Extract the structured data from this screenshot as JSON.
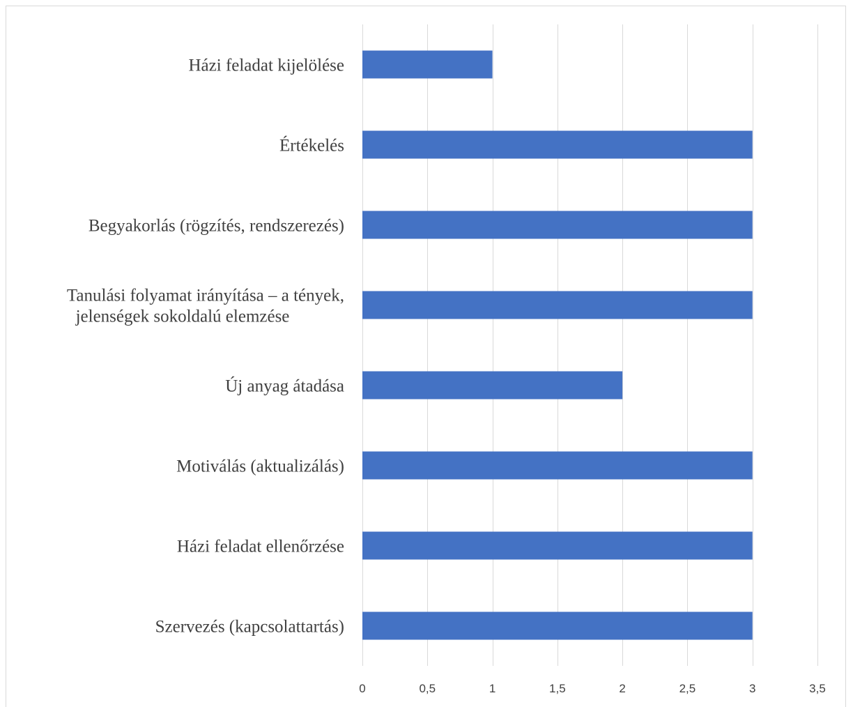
{
  "chart_data": {
    "type": "bar",
    "orientation": "horizontal",
    "categories": [
      [
        "Házi feladat kijelölése"
      ],
      [
        "Értékelés"
      ],
      [
        "Begyakorlás (rögzítés, rendszerezés)"
      ],
      [
        "Tanulási folyamat irányítása – a tények,",
        "jelenségek sokoldalú elemzése"
      ],
      [
        "Új anyag átadása"
      ],
      [
        "Motiválás (aktualizálás)"
      ],
      [
        "Házi feladat ellenőrzése"
      ],
      [
        "Szervezés (kapcsolattartás)"
      ]
    ],
    "values": [
      1,
      3,
      3,
      3,
      2,
      3,
      3,
      3
    ],
    "xlim": [
      0,
      3.5
    ],
    "xticks": [
      0,
      0.5,
      1,
      1.5,
      2,
      2.5,
      3,
      3.5
    ],
    "xtick_labels": [
      "0",
      "0,5",
      "1",
      "1,5",
      "2",
      "2,5",
      "3",
      "3,5"
    ],
    "title": "",
    "xlabel": "",
    "ylabel": "",
    "grid": "vertical",
    "legend": "none",
    "colors": {
      "bar": "#4472c4",
      "grid": "#d9d9d9",
      "text": "#404040"
    }
  }
}
